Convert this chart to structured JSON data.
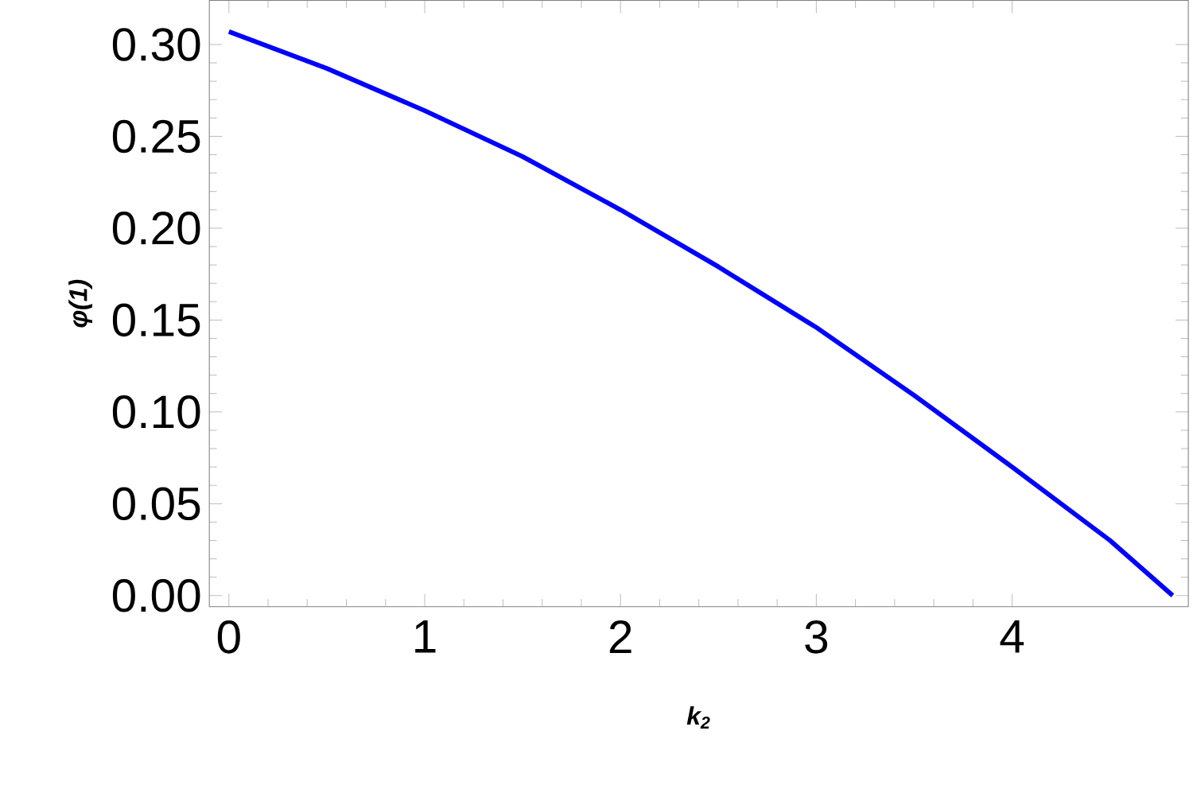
{
  "chart_data": {
    "type": "line",
    "xlabel": "k$_{2}$",
    "ylabel": "φ(1)",
    "x": [
      0,
      0.5,
      1,
      1.5,
      2,
      2.5,
      3,
      3.5,
      4,
      4.5,
      4.82
    ],
    "series": [
      {
        "color": "#0000ff",
        "values": [
          0.307,
          0.287,
          0.264,
          0.239,
          0.21,
          0.179,
          0.146,
          0.109,
          0.07,
          0.03,
          0
        ]
      }
    ],
    "xlim": [
      -0.1,
      4.9
    ],
    "ylim": [
      -0.006,
      0.324
    ],
    "xticks": [
      0,
      1,
      2,
      3,
      4
    ],
    "yticks": [
      {
        "value": 0,
        "label": "0.00"
      },
      {
        "value": 0.05,
        "label": "0.05"
      },
      {
        "value": 0.1,
        "label": "0.10"
      },
      {
        "value": 0.15,
        "label": "0.15"
      },
      {
        "value": 0.2,
        "label": "0.20"
      },
      {
        "value": 0.25,
        "label": "0.25"
      },
      {
        "value": 0.3,
        "label": "0.30"
      }
    ],
    "grid": false,
    "marker": "none",
    "line_style": "solid"
  }
}
